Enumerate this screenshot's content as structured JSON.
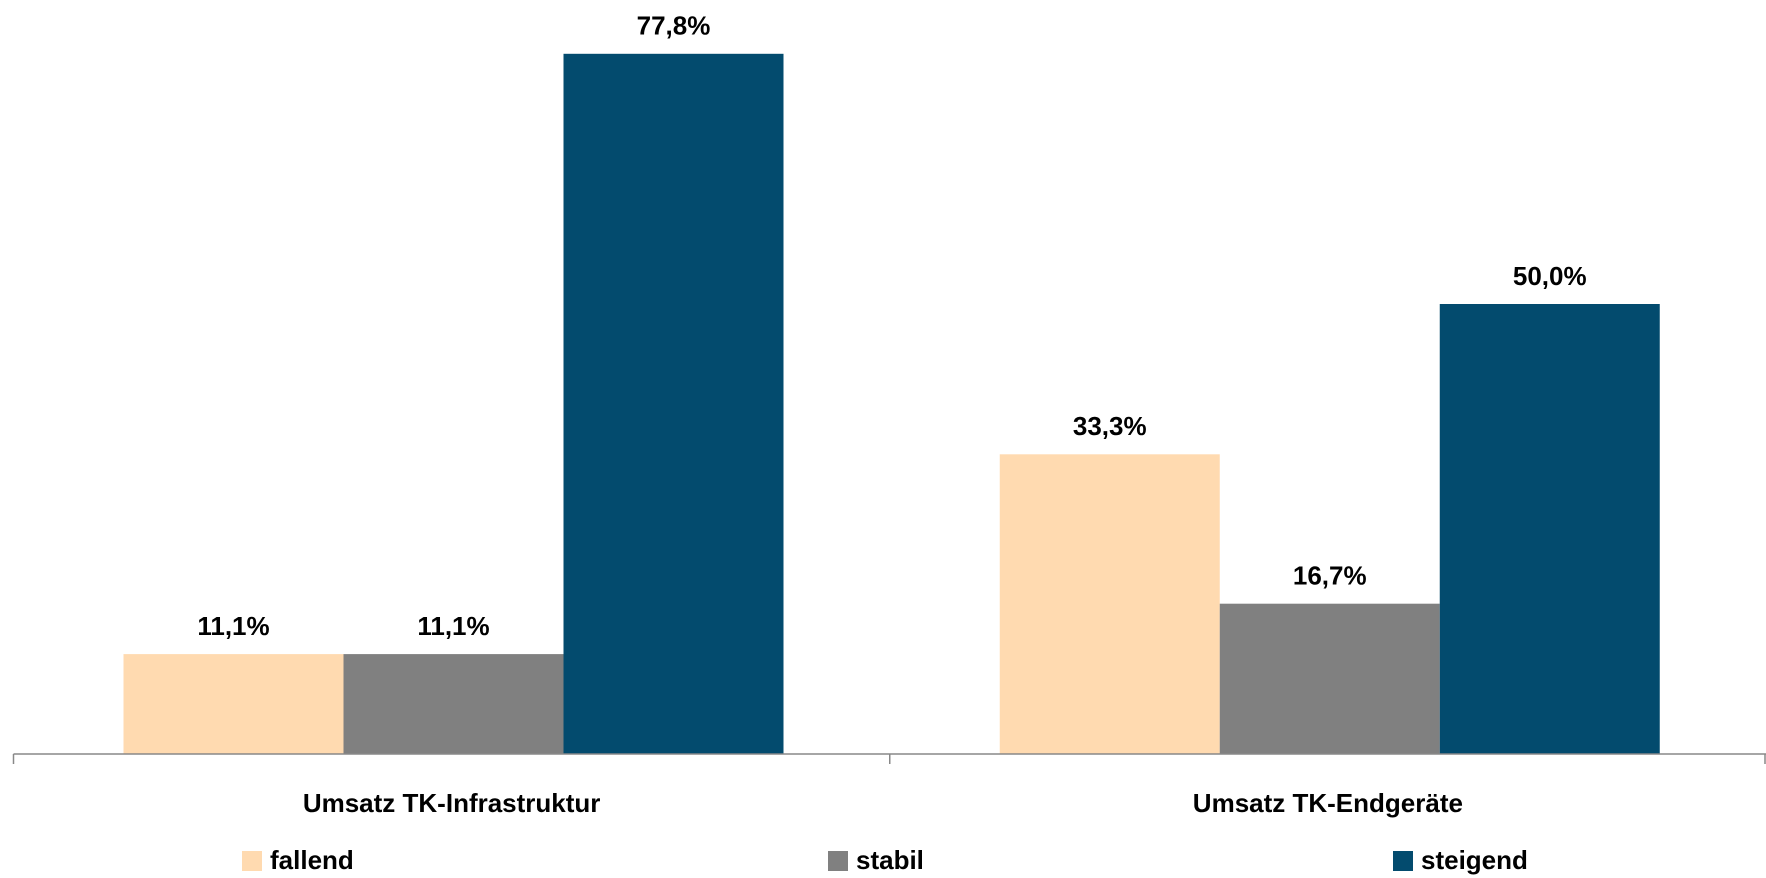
{
  "chart_data": {
    "type": "bar",
    "categories": [
      "Umsatz TK-Infrastruktur",
      "Umsatz TK-Endgeräte"
    ],
    "series": [
      {
        "name": "fallend",
        "color": "#FFDAB0",
        "values": [
          11.1,
          33.3
        ],
        "value_labels": [
          "11,1%",
          "33,3%"
        ]
      },
      {
        "name": "stabil",
        "color": "#808080",
        "values": [
          11.1,
          16.7
        ],
        "value_labels": [
          "11,1%",
          "16,7%"
        ]
      },
      {
        "name": "steigend",
        "color": "#034B6E",
        "values": [
          77.8,
          50.0
        ],
        "value_labels": [
          "77,8%",
          "50,0%"
        ]
      }
    ]
  }
}
